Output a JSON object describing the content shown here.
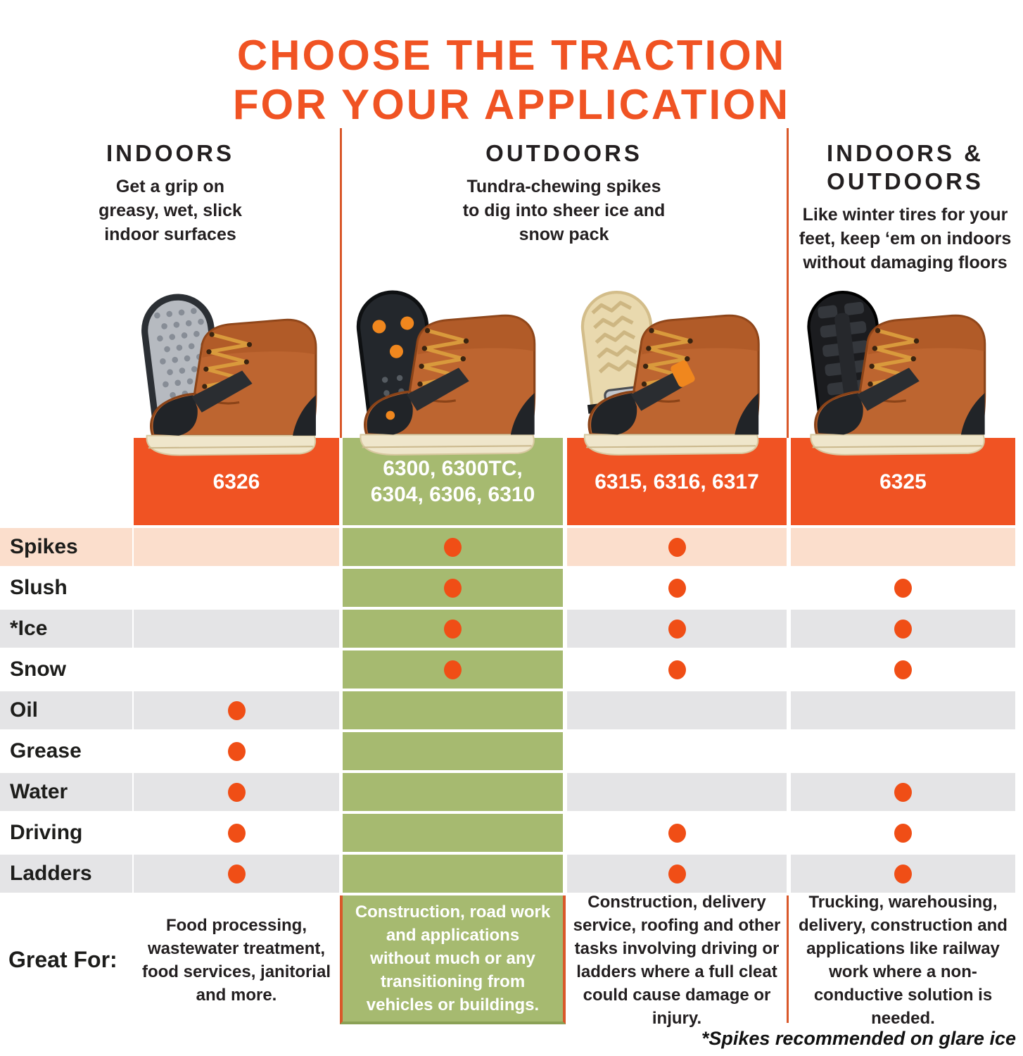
{
  "title": {
    "line1": "CHOOSE THE TRACTION",
    "line2": "FOR YOUR APPLICATION"
  },
  "colors": {
    "accent_orange": "#F05323",
    "divider_orange": "#D9582A",
    "dot_orange": "#F04E16",
    "green": "#A6BA70",
    "peach_row": "#FBDECC",
    "gray_row": "#E4E4E6",
    "text_dark": "#231F20",
    "white": "#FFFFFF"
  },
  "sections": [
    {
      "heading": "INDOORS",
      "subtitle": "Get a grip on greasy, wet, slick indoor surfaces"
    },
    {
      "heading": "OUTDOORS",
      "subtitle": "Tundra-chewing spikes to dig into sheer ice and snow pack"
    },
    {
      "heading": "INDOORS & OUTDOORS",
      "subtitle": "Like winter tires for your feet, keep ‘em on indoors without damaging floors"
    }
  ],
  "products": [
    {
      "models": "6326",
      "bar": "orange",
      "image": "boot-with-gray-pad-traction",
      "great_for": "Food processing, wastewater treatment, food services, janitorial and more."
    },
    {
      "models": "6300, 6300TC, 6304, 6306, 6310",
      "bar": "green",
      "image": "boot-with-spike-traction",
      "great_for": "Construction, road work and applications without much or any transitioning from vehicles or buildings."
    },
    {
      "models": "6315, 6316, 6317",
      "bar": "orange",
      "image": "boot-with-midsole-plate-traction",
      "great_for": "Construction, delivery service, roofing and other tasks involving driving or ladders where a full cleat could cause damage or injury."
    },
    {
      "models": "6325",
      "bar": "orange",
      "image": "boot-with-full-cleat-traction",
      "great_for": "Trucking, warehousing, delivery, construction and applications like railway work where a non-conductive solution is needed."
    }
  ],
  "matrix": {
    "rows": [
      {
        "label": "Spikes",
        "cells": [
          false,
          true,
          true,
          false
        ]
      },
      {
        "label": "Slush",
        "cells": [
          false,
          true,
          true,
          true
        ]
      },
      {
        "label": "*Ice",
        "cells": [
          false,
          true,
          true,
          true
        ]
      },
      {
        "label": "Snow",
        "cells": [
          false,
          true,
          true,
          true
        ]
      },
      {
        "label": "Oil",
        "cells": [
          true,
          false,
          false,
          false
        ]
      },
      {
        "label": "Grease",
        "cells": [
          true,
          false,
          false,
          false
        ]
      },
      {
        "label": "Water",
        "cells": [
          true,
          false,
          false,
          true
        ]
      },
      {
        "label": "Driving",
        "cells": [
          true,
          false,
          true,
          true
        ]
      },
      {
        "label": "Ladders",
        "cells": [
          true,
          false,
          true,
          true
        ]
      }
    ]
  },
  "great_for_label": "Great For:",
  "footnote": "*Spikes recommended on glare ice",
  "chart_data": {
    "type": "table",
    "title": "CHOOSE THE TRACTION FOR YOUR APPLICATION",
    "columns": [
      "6326",
      "6300, 6300TC, 6304, 6306, 6310",
      "6315, 6316, 6317",
      "6325"
    ],
    "column_groups": [
      "INDOORS",
      "OUTDOORS",
      "OUTDOORS",
      "INDOORS & OUTDOORS"
    ],
    "row_labels": [
      "Spikes",
      "Slush",
      "*Ice",
      "Snow",
      "Oil",
      "Grease",
      "Water",
      "Driving",
      "Ladders"
    ],
    "values": [
      [
        0,
        1,
        1,
        0
      ],
      [
        0,
        1,
        1,
        1
      ],
      [
        0,
        1,
        1,
        1
      ],
      [
        0,
        1,
        1,
        1
      ],
      [
        1,
        0,
        0,
        0
      ],
      [
        1,
        0,
        0,
        0
      ],
      [
        1,
        0,
        0,
        1
      ],
      [
        1,
        0,
        1,
        1
      ],
      [
        1,
        0,
        1,
        1
      ]
    ],
    "legend": "dot = applicable",
    "footnote": "*Spikes recommended on glare ice"
  }
}
